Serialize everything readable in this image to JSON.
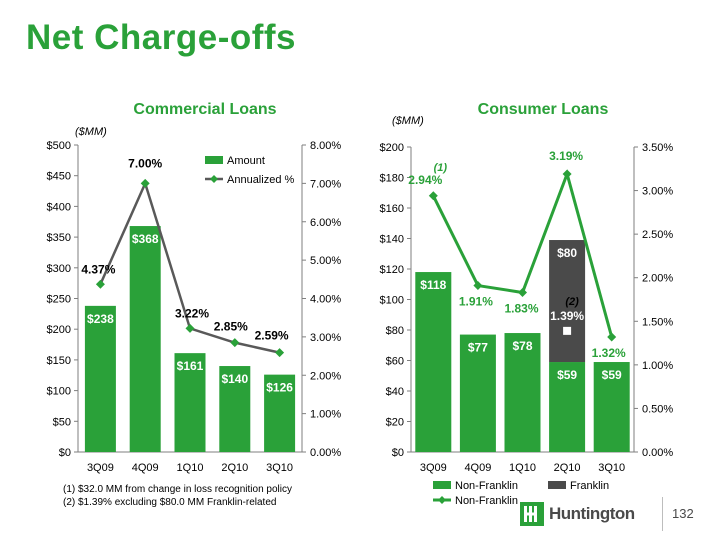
{
  "title": "Net Charge-offs",
  "colors": {
    "green": "#2aa139",
    "dark": "#4a4a4a",
    "line": "#2aa139"
  },
  "footnotes": [
    "(1)  $32.0 MM from change in loss recognition policy",
    "(2)  $1.39% excluding $80.0 MM  Franklin-related"
  ],
  "logo_text": "Huntington",
  "page_number": "132",
  "chart_data": [
    {
      "type": "bar",
      "title": "Commercial Loans",
      "unit_label": "($MM)",
      "categories": [
        "3Q09",
        "4Q09",
        "1Q10",
        "2Q10",
        "3Q10"
      ],
      "y_left": {
        "min": 0,
        "max": 500,
        "step": 50,
        "ticks": [
          "$0",
          "$50",
          "$100",
          "$150",
          "$200",
          "$250",
          "$300",
          "$350",
          "$400",
          "$450",
          "$500"
        ]
      },
      "y_right": {
        "min": 0,
        "max": 8,
        "step": 1,
        "ticks": [
          "0.00%",
          "1.00%",
          "2.00%",
          "3.00%",
          "4.00%",
          "5.00%",
          "6.00%",
          "7.00%",
          "8.00%"
        ]
      },
      "series": [
        {
          "name": "Amount",
          "kind": "bar",
          "values": [
            238,
            368,
            161,
            140,
            126
          ],
          "labels": [
            "$238",
            "$368",
            "$161",
            "$140",
            "$126"
          ]
        },
        {
          "name": "Annualized %",
          "kind": "line",
          "values": [
            4.37,
            7.0,
            3.22,
            2.85,
            2.59
          ],
          "labels": [
            "4.37%",
            "7.00%",
            "3.22%",
            "2.85%",
            "2.59%"
          ]
        }
      ],
      "legend": [
        "Amount",
        "Annualized %"
      ],
      "legend_position": "top-right",
      "grid": false
    },
    {
      "type": "bar",
      "title": "Consumer Loans",
      "unit_label": "($MM)",
      "categories": [
        "3Q09",
        "4Q09",
        "1Q10",
        "2Q10",
        "3Q10"
      ],
      "y_left": {
        "min": 0,
        "max": 200,
        "step": 20,
        "ticks": [
          "$0",
          "$20",
          "$40",
          "$60",
          "$80",
          "$100",
          "$120",
          "$140",
          "$160",
          "$180",
          "$200"
        ]
      },
      "y_right": {
        "min": 0,
        "max": 3.5,
        "step": 0.5,
        "ticks": [
          "0.00%",
          "0.50%",
          "1.00%",
          "1.50%",
          "2.00%",
          "2.50%",
          "3.00%",
          "3.50%"
        ]
      },
      "series": [
        {
          "name": "Non-Franklin",
          "kind": "bar",
          "values": [
            118,
            77,
            78,
            59,
            59
          ],
          "labels": [
            "$118",
            "$77",
            "$78",
            "$59",
            "$59"
          ]
        },
        {
          "name": "Franklin",
          "kind": "bar-stack",
          "values": [
            0,
            0,
            0,
            80,
            0
          ],
          "labels": [
            "",
            "",
            "",
            "$80",
            ""
          ]
        },
        {
          "name": "Non-Franklin",
          "kind": "line",
          "values": [
            2.94,
            1.91,
            1.83,
            3.19,
            1.32
          ],
          "labels": [
            "2.94%",
            "1.91%",
            "1.83%",
            "3.19%",
            "1.32%"
          ]
        }
      ],
      "annotations": [
        {
          "text": "(1)",
          "category": "3Q09"
        },
        {
          "text": "(2)",
          "category": "2Q10"
        },
        {
          "text": "1.39%",
          "category": "2Q10"
        }
      ],
      "marker_excluding_franklin": {
        "category": "2Q10",
        "value": 1.39
      },
      "legend": [
        "Non-Franklin",
        "Franklin",
        "Non-Franklin"
      ],
      "legend_position": "bottom",
      "grid": false
    }
  ]
}
